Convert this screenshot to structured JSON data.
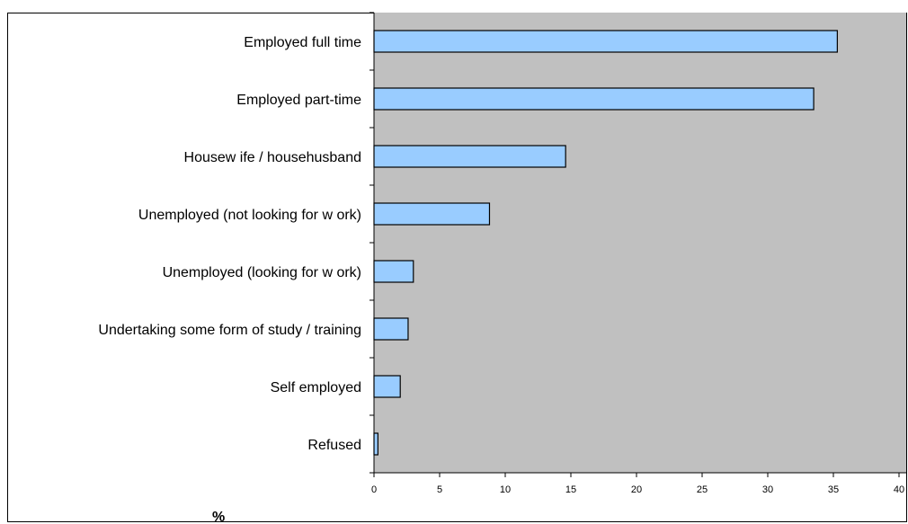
{
  "chart_data": {
    "type": "bar",
    "orientation": "horizontal",
    "categories": [
      "Employed full time",
      "Employed part-time",
      "Housew ife / househusband",
      "Unemployed (not looking for w ork)",
      "Unemployed (looking for w ork)",
      "Undertaking some form of study / training",
      "Self employed",
      "Refused"
    ],
    "values": [
      35.3,
      33.5,
      14.6,
      8.8,
      3.0,
      2.6,
      2.0,
      0.3
    ],
    "xlabel": "%",
    "xlim": [
      0,
      40
    ],
    "x_ticks": [
      "0",
      "5",
      "10",
      "15",
      "20",
      "25",
      "30",
      "35",
      "40"
    ],
    "grid": false,
    "legend": "none",
    "colors": {
      "plot_background": "#c0c0c0",
      "bar_fill": "#99ccff",
      "bar_stroke": "#000000"
    }
  }
}
